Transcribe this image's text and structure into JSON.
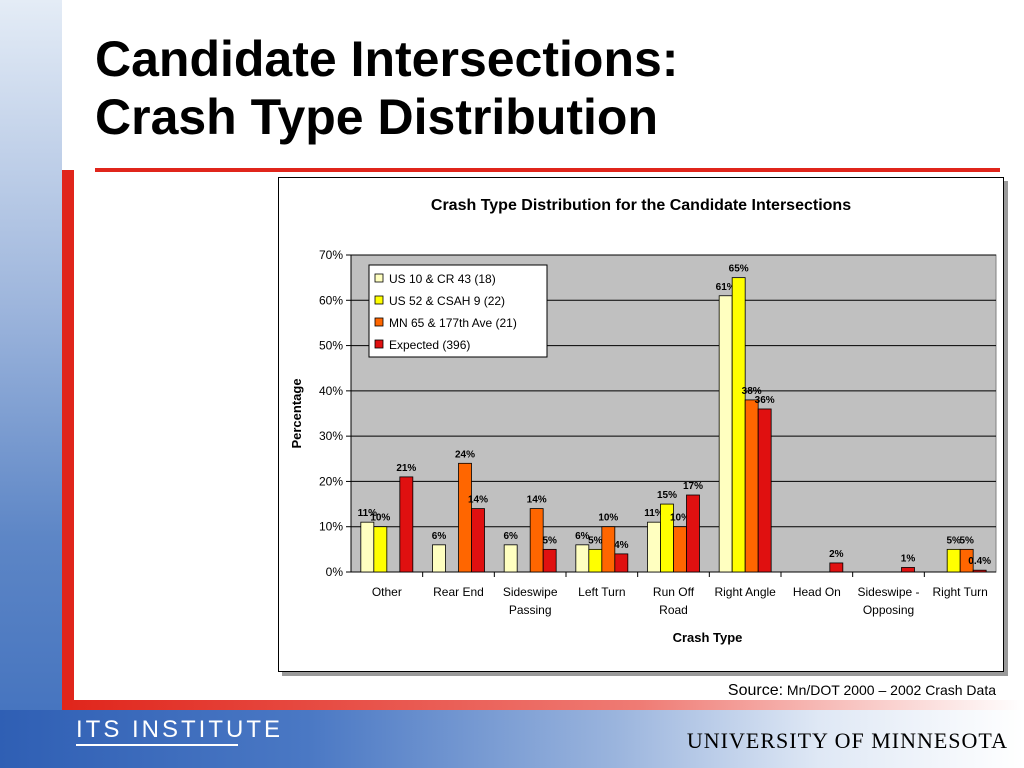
{
  "slide": {
    "title_line1": "Candidate Intersections:",
    "title_line2": "Crash Type Distribution",
    "source_label": "Source:",
    "source_text": "Mn/DOT 2000 – 2002 Crash Data",
    "footer_left": "ITS INSTITUTE",
    "footer_right": "UNIVERSITY OF MINNESOTA"
  },
  "colors": {
    "accent_red": "#e0251b",
    "plot_bg": "#c0c0c0",
    "series": [
      "#ffffc0",
      "#ffff00",
      "#ff6600",
      "#e01010"
    ]
  },
  "chart_data": {
    "type": "bar",
    "title": "Crash Type Distribution for the Candidate Intersections",
    "xlabel": "Crash Type",
    "ylabel": "Percentage",
    "ylim": [
      0,
      70
    ],
    "yticks": [
      "0%",
      "10%",
      "20%",
      "30%",
      "40%",
      "50%",
      "60%",
      "70%"
    ],
    "legend_position": "top-left",
    "grid": true,
    "categories": [
      [
        "Other"
      ],
      [
        "Rear End"
      ],
      [
        "Sideswipe",
        "Passing"
      ],
      [
        "Left Turn"
      ],
      [
        "Run Off",
        "Road"
      ],
      [
        "Right Angle"
      ],
      [
        "Head On"
      ],
      [
        "Sideswipe -",
        "Opposing"
      ],
      [
        "Right Turn"
      ]
    ],
    "series": [
      {
        "name": "US 10 & CR 43 (18)",
        "values": [
          11,
          6,
          6,
          6,
          11,
          61,
          0,
          0,
          0
        ],
        "labels": [
          "11%",
          "6%",
          "6%",
          "6%",
          "11%",
          "61%",
          "",
          "",
          ""
        ]
      },
      {
        "name": "US 52 & CSAH 9 (22)",
        "values": [
          10,
          0,
          0,
          5,
          15,
          65,
          0,
          0,
          5
        ],
        "labels": [
          "10%",
          "",
          "",
          "5%",
          "15%",
          "65%",
          "",
          "",
          "5%"
        ]
      },
      {
        "name": "MN 65 & 177th Ave (21)",
        "values": [
          0,
          24,
          14,
          10,
          10,
          38,
          0,
          0,
          5
        ],
        "labels": [
          "",
          "24%",
          "14%",
          "10%",
          "10%",
          "38%",
          "",
          "",
          "5%"
        ]
      },
      {
        "name": "Expected (396)",
        "values": [
          21,
          14,
          5,
          4,
          17,
          36,
          2,
          1,
          0.4
        ],
        "labels": [
          "21%",
          "14%",
          "5%",
          "4%",
          "17%",
          "36%",
          "2%",
          "1%",
          "0.4%"
        ]
      }
    ]
  }
}
